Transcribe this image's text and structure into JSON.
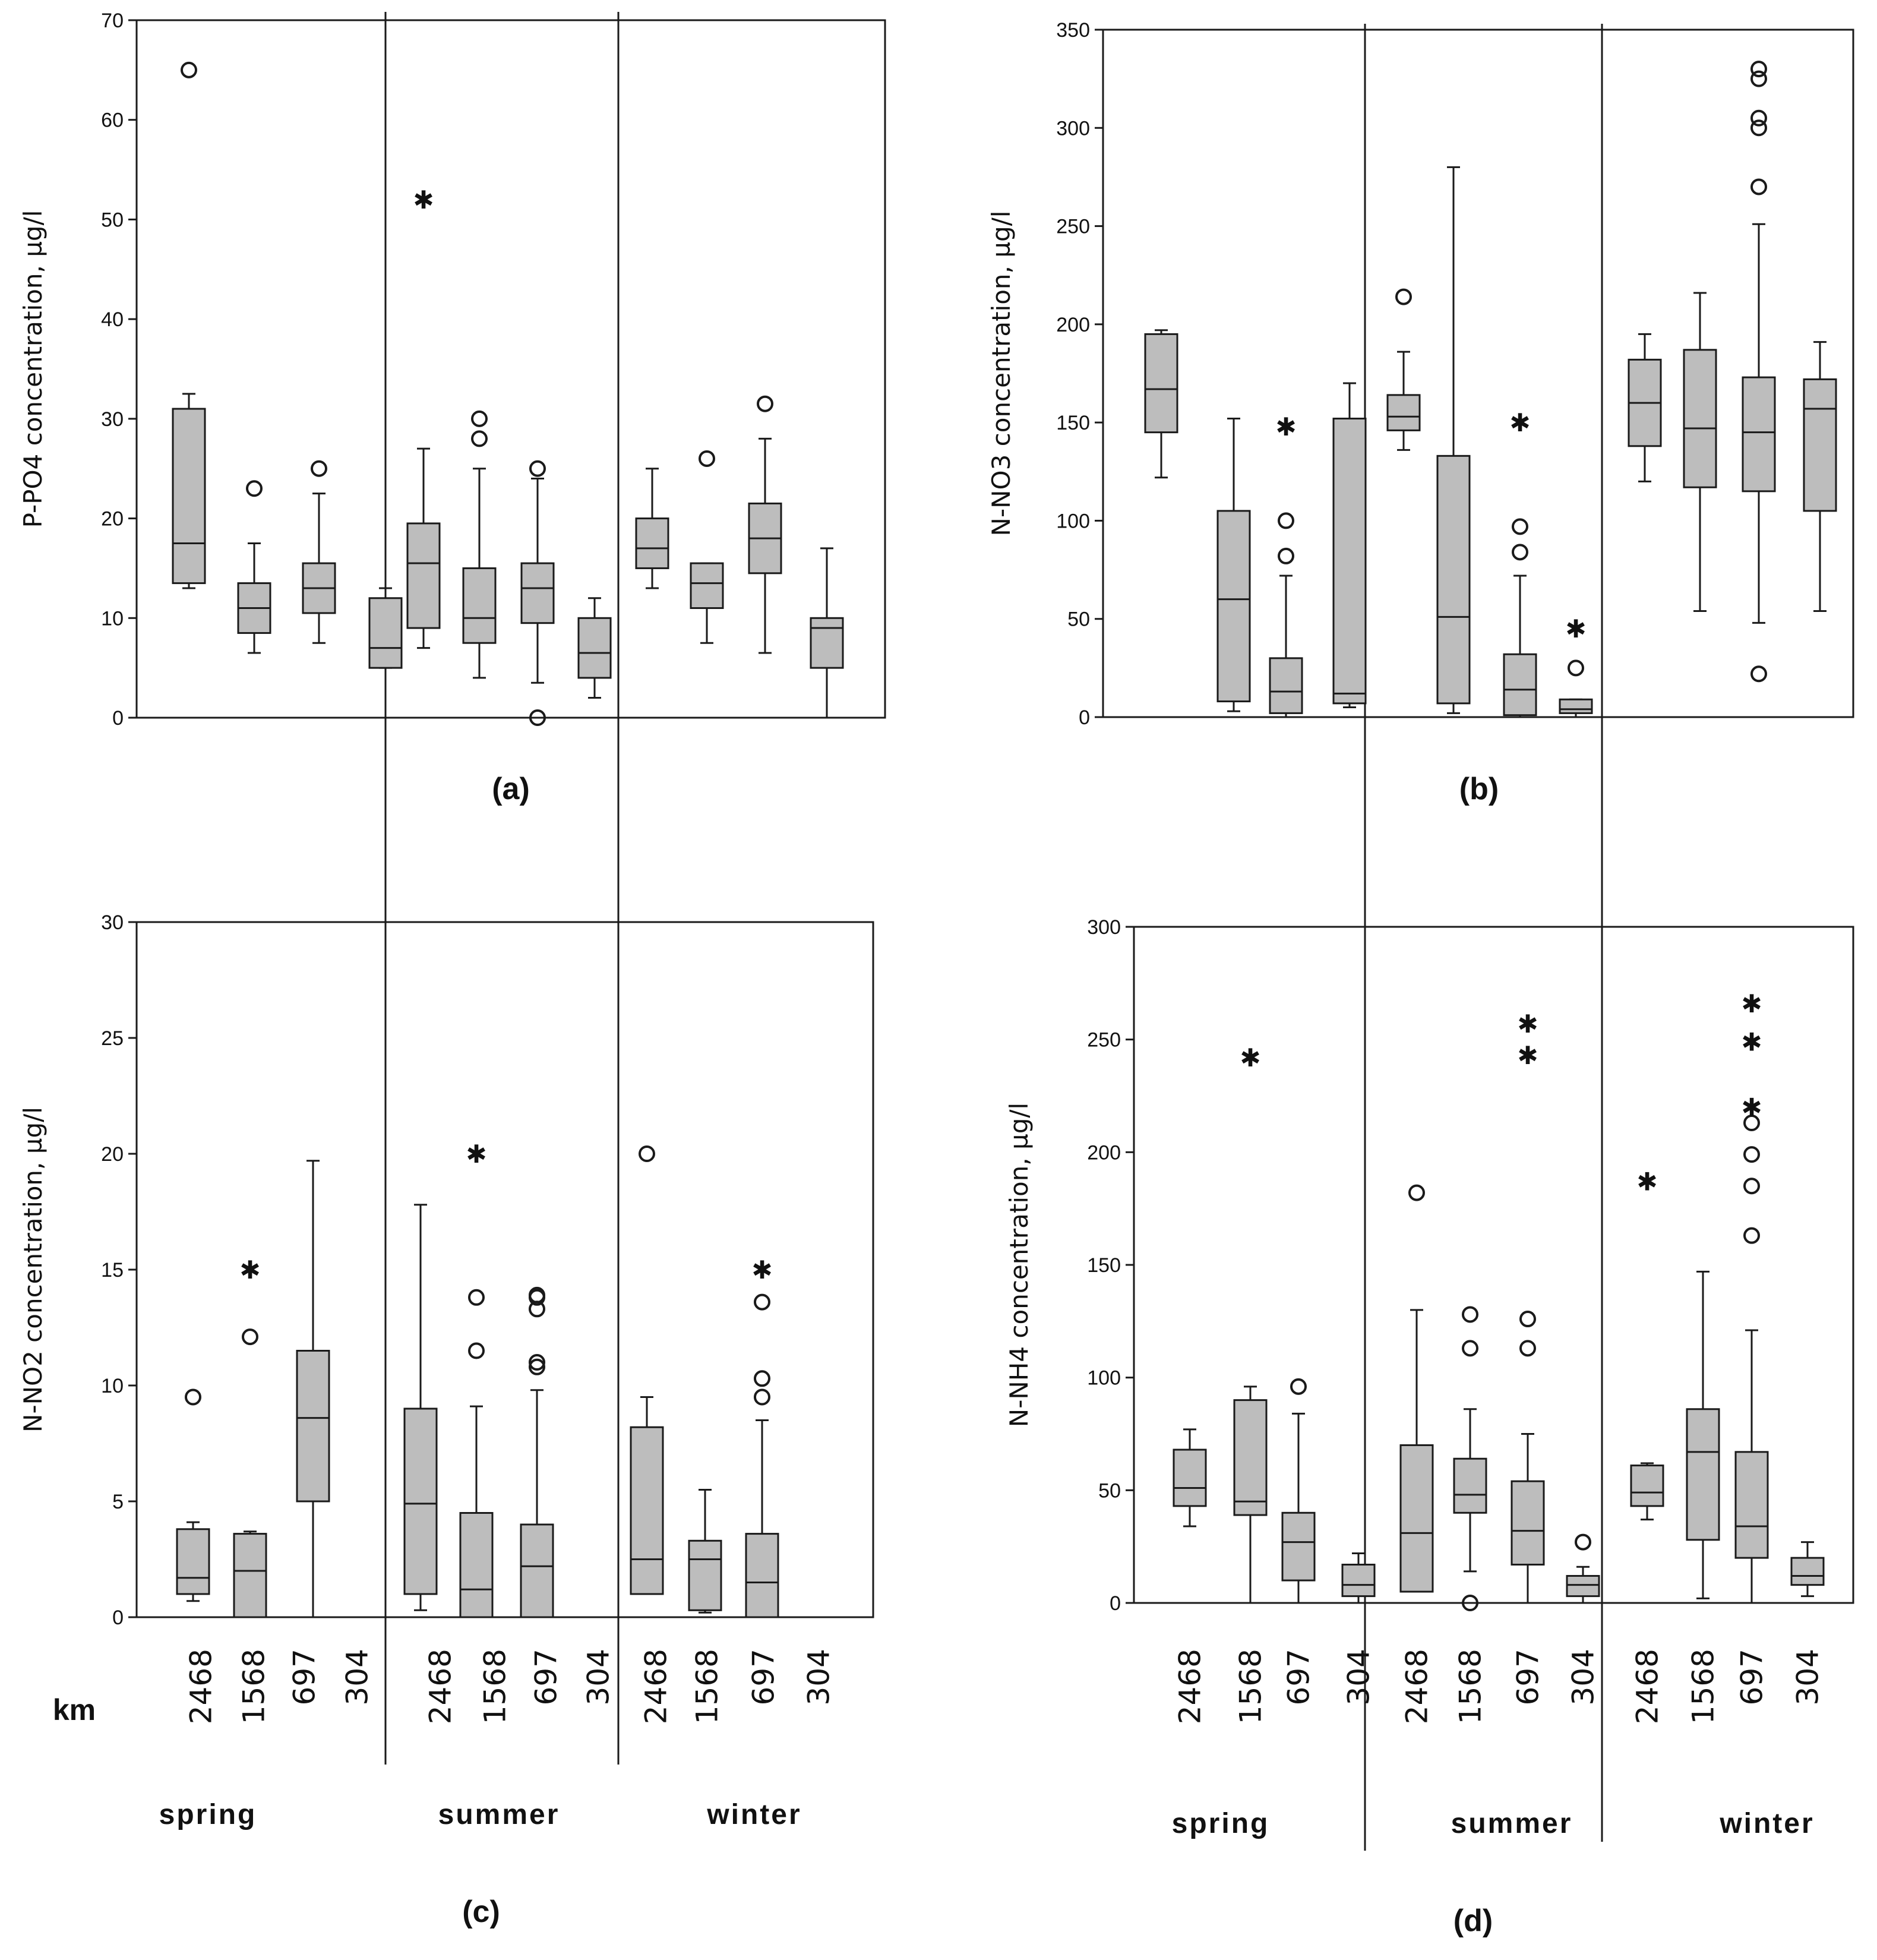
{
  "figure": {
    "km_label": "km",
    "season_labels": [
      "spring",
      "summer",
      "winter"
    ],
    "site_labels": [
      "2468",
      "1568",
      "697",
      "304"
    ],
    "box_fill": "#bdbdbd",
    "line_color": "#1a1a1a"
  },
  "chart_data": [
    {
      "id": "a",
      "type": "boxplot",
      "panel_label": "(a)",
      "ylabel": "P-PO4 concentration, µg/l",
      "ylim": [
        0,
        70
      ],
      "yticks": [
        0,
        10,
        20,
        30,
        40,
        50,
        60,
        70
      ],
      "groups": [
        "spring",
        "summer",
        "winter"
      ],
      "sites": [
        "2468",
        "1568",
        "697",
        "304"
      ],
      "boxes": [
        {
          "season": "spring",
          "site": "2468",
          "whisker_low": 13,
          "q1": 13.5,
          "median": 17.5,
          "q3": 31,
          "whisker_high": 32.5,
          "outliers": [
            65
          ]
        },
        {
          "season": "spring",
          "site": "1568",
          "whisker_low": 6.5,
          "q1": 8.5,
          "median": 11,
          "q3": 13.5,
          "whisker_high": 17.5,
          "outliers": [
            23
          ]
        },
        {
          "season": "spring",
          "site": "697",
          "whisker_low": 7.5,
          "q1": 10.5,
          "median": 13,
          "q3": 15.5,
          "whisker_high": 22.5,
          "outliers": [
            25
          ]
        },
        {
          "season": "spring",
          "site": "304",
          "whisker_low": 5,
          "q1": 5,
          "median": 7,
          "q3": 12,
          "whisker_high": 13,
          "outliers": []
        },
        {
          "season": "summer",
          "site": "2468",
          "whisker_low": 7,
          "q1": 9,
          "median": 15.5,
          "q3": 19.5,
          "whisker_high": 27,
          "extremes": [
            52
          ]
        },
        {
          "season": "summer",
          "site": "1568",
          "whisker_low": 4,
          "q1": 7.5,
          "median": 10,
          "q3": 15,
          "whisker_high": 25,
          "outliers": [
            28,
            30
          ]
        },
        {
          "season": "summer",
          "site": "697",
          "whisker_low": 3.5,
          "q1": 9.5,
          "median": 13,
          "q3": 15.5,
          "whisker_high": 24,
          "outliers": [
            25,
            0
          ]
        },
        {
          "season": "summer",
          "site": "304",
          "whisker_low": 2,
          "q1": 4,
          "median": 6.5,
          "q3": 10,
          "whisker_high": 12,
          "outliers": []
        },
        {
          "season": "winter",
          "site": "2468",
          "whisker_low": 13,
          "q1": 15,
          "median": 17,
          "q3": 20,
          "whisker_high": 25,
          "outliers": []
        },
        {
          "season": "winter",
          "site": "1568",
          "whisker_low": 7.5,
          "q1": 11,
          "median": 13.5,
          "q3": 15.5,
          "whisker_high": 15.5,
          "outliers": [
            26
          ]
        },
        {
          "season": "winter",
          "site": "697",
          "whisker_low": 6.5,
          "q1": 14.5,
          "median": 18,
          "q3": 21.5,
          "whisker_high": 28,
          "outliers": [
            31.5
          ]
        },
        {
          "season": "winter",
          "site": "304",
          "whisker_low": 0,
          "q1": 5,
          "median": 9,
          "q3": 10,
          "whisker_high": 17,
          "outliers": []
        }
      ]
    },
    {
      "id": "b",
      "type": "boxplot",
      "panel_label": "(b)",
      "ylabel": "N-NO3 concentration, µg/l",
      "ylim": [
        0,
        350
      ],
      "yticks": [
        0,
        50,
        100,
        150,
        200,
        250,
        300,
        350
      ],
      "groups": [
        "spring",
        "summer",
        "winter"
      ],
      "sites": [
        "2468",
        "1568",
        "697",
        "304"
      ],
      "boxes": [
        {
          "season": "spring",
          "site": "2468",
          "whisker_low": 122,
          "q1": 145,
          "median": 167,
          "q3": 195,
          "whisker_high": 197,
          "outliers": []
        },
        {
          "season": "spring",
          "site": "1568",
          "whisker_low": 3,
          "q1": 8,
          "median": 60,
          "q3": 105,
          "whisker_high": 152,
          "outliers": []
        },
        {
          "season": "spring",
          "site": "697",
          "whisker_low": 0,
          "q1": 2,
          "median": 13,
          "q3": 30,
          "whisker_high": 72,
          "outliers": [
            82,
            100
          ],
          "extremes": [
            148
          ]
        },
        {
          "season": "spring",
          "site": "304",
          "whisker_low": 5,
          "q1": 7,
          "median": 12,
          "q3": 152,
          "whisker_high": 170,
          "outliers": []
        },
        {
          "season": "summer",
          "site": "2468",
          "whisker_low": 136,
          "q1": 146,
          "median": 153,
          "q3": 164,
          "whisker_high": 186,
          "outliers": [
            214
          ]
        },
        {
          "season": "summer",
          "site": "1568",
          "whisker_low": 2,
          "q1": 7,
          "median": 51,
          "q3": 133,
          "whisker_high": 280,
          "outliers": []
        },
        {
          "season": "summer",
          "site": "697",
          "whisker_low": 0,
          "q1": 1,
          "median": 14,
          "q3": 32,
          "whisker_high": 72,
          "outliers": [
            84,
            97
          ],
          "extremes": [
            150
          ]
        },
        {
          "season": "summer",
          "site": "304",
          "whisker_low": 0,
          "q1": 2,
          "median": 4,
          "q3": 9,
          "whisker_high": 9,
          "outliers": [
            25
          ],
          "extremes": [
            45
          ]
        },
        {
          "season": "winter",
          "site": "2468",
          "whisker_low": 120,
          "q1": 138,
          "median": 160,
          "q3": 182,
          "whisker_high": 195,
          "outliers": []
        },
        {
          "season": "winter",
          "site": "1568",
          "whisker_low": 54,
          "q1": 117,
          "median": 147,
          "q3": 187,
          "whisker_high": 216,
          "outliers": []
        },
        {
          "season": "winter",
          "site": "697",
          "whisker_low": 48,
          "q1": 115,
          "median": 145,
          "q3": 173,
          "whisker_high": 251,
          "outliers": [
            22,
            270,
            300,
            305,
            325,
            330
          ]
        },
        {
          "season": "winter",
          "site": "304",
          "whisker_low": 54,
          "q1": 105,
          "median": 157,
          "q3": 172,
          "whisker_high": 191,
          "outliers": []
        }
      ]
    },
    {
      "id": "c",
      "type": "boxplot",
      "panel_label": "(c)",
      "ylabel": "N-NO2 concentration, µg/l",
      "ylim": [
        0,
        30
      ],
      "yticks": [
        0,
        5,
        10,
        15,
        20,
        25,
        30
      ],
      "groups": [
        "spring",
        "summer",
        "winter"
      ],
      "sites": [
        "2468",
        "1568",
        "697",
        "304"
      ],
      "boxes": [
        {
          "season": "spring",
          "site": "2468",
          "whisker_low": 0.7,
          "q1": 1,
          "median": 1.7,
          "q3": 3.8,
          "whisker_high": 4.1,
          "outliers": [
            9.5
          ]
        },
        {
          "season": "spring",
          "site": "1568",
          "whisker_low": 0,
          "q1": 0,
          "median": 2,
          "q3": 3.6,
          "whisker_high": 3.7,
          "outliers": [
            12.1
          ],
          "extremes": [
            15
          ]
        },
        {
          "season": "spring",
          "site": "697",
          "whisker_low": 0,
          "q1": 5,
          "median": 8.6,
          "q3": 11.5,
          "whisker_high": 19.7,
          "outliers": []
        },
        {
          "season": "spring",
          "site": "304",
          "whisker_low": 0,
          "q1": 0,
          "median": 0,
          "q3": 0,
          "whisker_high": 0,
          "outliers": []
        },
        {
          "season": "summer",
          "site": "2468",
          "whisker_low": 0.3,
          "q1": 1,
          "median": 4.9,
          "q3": 9,
          "whisker_high": 17.8,
          "outliers": []
        },
        {
          "season": "summer",
          "site": "1568",
          "whisker_low": 0,
          "q1": 0,
          "median": 1.2,
          "q3": 4.5,
          "whisker_high": 9.1,
          "outliers": [
            11.5,
            13.8
          ],
          "extremes": [
            20
          ]
        },
        {
          "season": "summer",
          "site": "697",
          "whisker_low": 0,
          "q1": 0,
          "median": 2.2,
          "q3": 4,
          "whisker_high": 9.8,
          "outliers": [
            10.8,
            11,
            13.3,
            13.8,
            13.9
          ]
        },
        {
          "season": "summer",
          "site": "304",
          "whisker_low": 0,
          "q1": 0,
          "median": 0,
          "q3": 0,
          "whisker_high": 0,
          "outliers": []
        },
        {
          "season": "winter",
          "site": "2468",
          "whisker_low": 1,
          "q1": 1,
          "median": 2.5,
          "q3": 8.2,
          "whisker_high": 9.5,
          "outliers": [
            20
          ]
        },
        {
          "season": "winter",
          "site": "1568",
          "whisker_low": 0.2,
          "q1": 0.3,
          "median": 2.5,
          "q3": 3.3,
          "whisker_high": 5.5,
          "outliers": []
        },
        {
          "season": "winter",
          "site": "697",
          "whisker_low": 0,
          "q1": 0,
          "median": 1.5,
          "q3": 3.6,
          "whisker_high": 8.5,
          "outliers": [
            9.5,
            10.3,
            13.6
          ],
          "extremes": [
            15
          ]
        },
        {
          "season": "winter",
          "site": "304",
          "whisker_low": 0,
          "q1": 0,
          "median": 0,
          "q3": 0,
          "whisker_high": 0,
          "outliers": []
        }
      ]
    },
    {
      "id": "d",
      "type": "boxplot",
      "panel_label": "(d)",
      "ylabel": "N-NH4 concentration, µg/l",
      "ylim": [
        0,
        300
      ],
      "yticks": [
        0,
        50,
        100,
        150,
        200,
        250,
        300
      ],
      "groups": [
        "spring",
        "summer",
        "winter"
      ],
      "sites": [
        "2468",
        "1568",
        "697",
        "304"
      ],
      "boxes": [
        {
          "season": "spring",
          "site": "2468",
          "whisker_low": 34,
          "q1": 43,
          "median": 51,
          "q3": 68,
          "whisker_high": 77,
          "outliers": []
        },
        {
          "season": "spring",
          "site": "1568",
          "whisker_low": 0,
          "q1": 39,
          "median": 45,
          "q3": 90,
          "whisker_high": 96,
          "extremes": [
            242
          ]
        },
        {
          "season": "spring",
          "site": "697",
          "whisker_low": 0,
          "q1": 10,
          "median": 27,
          "q3": 40,
          "whisker_high": 84,
          "outliers": [
            96
          ]
        },
        {
          "season": "spring",
          "site": "304",
          "whisker_low": 0,
          "q1": 3,
          "median": 8,
          "q3": 17,
          "whisker_high": 22,
          "outliers": []
        },
        {
          "season": "summer",
          "site": "2468",
          "whisker_low": 5,
          "q1": 5,
          "median": 31,
          "q3": 70,
          "whisker_high": 130,
          "outliers": [
            182
          ]
        },
        {
          "season": "summer",
          "site": "1568",
          "whisker_low": 14,
          "q1": 40,
          "median": 48,
          "q3": 64,
          "whisker_high": 86,
          "outliers": [
            0,
            113,
            128
          ]
        },
        {
          "season": "summer",
          "site": "697",
          "whisker_low": 0,
          "q1": 17,
          "median": 32,
          "q3": 54,
          "whisker_high": 75,
          "outliers": [
            113,
            126
          ],
          "extremes": [
            243,
            257
          ]
        },
        {
          "season": "summer",
          "site": "304",
          "whisker_low": 0,
          "q1": 3,
          "median": 8,
          "q3": 12,
          "whisker_high": 16,
          "outliers": [
            27
          ]
        },
        {
          "season": "winter",
          "site": "2468",
          "whisker_low": 37,
          "q1": 43,
          "median": 49,
          "q3": 61,
          "whisker_high": 62,
          "extremes": [
            187
          ]
        },
        {
          "season": "winter",
          "site": "1568",
          "whisker_low": 2,
          "q1": 28,
          "median": 67,
          "q3": 86,
          "whisker_high": 147,
          "outliers": []
        },
        {
          "season": "winter",
          "site": "697",
          "whisker_low": 0,
          "q1": 20,
          "median": 34,
          "q3": 67,
          "whisker_high": 121,
          "outliers": [
            163,
            185,
            199,
            213
          ],
          "extremes": [
            220,
            249,
            266
          ]
        },
        {
          "season": "winter",
          "site": "304",
          "whisker_low": 3,
          "q1": 8,
          "median": 12,
          "q3": 20,
          "whisker_high": 27,
          "outliers": []
        }
      ]
    }
  ]
}
